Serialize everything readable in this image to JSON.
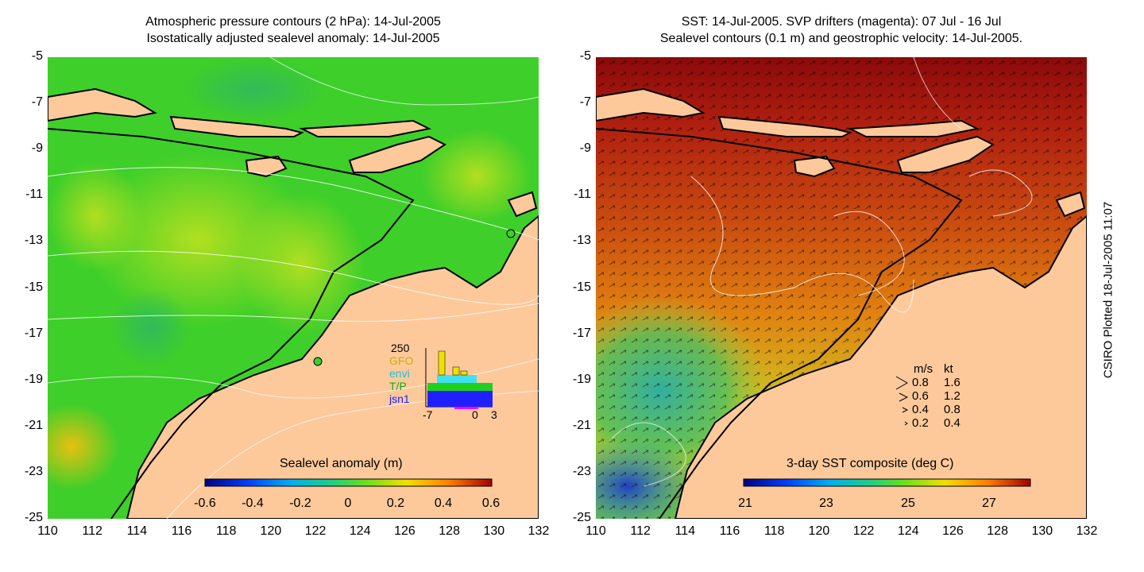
{
  "left_panel": {
    "title_line1": "Atmospheric pressure contours (2 hPa): 14-Jul-2005",
    "title_line2": "Isostatically adjusted sealevel anomaly: 14-Jul-2005",
    "colorbar_label": "Sealevel anomaly (m)",
    "colorbar_ticks": [
      "-0.6",
      "-0.4",
      "-0.2",
      "0",
      "0.2",
      "0.4",
      "0.6"
    ],
    "inset": {
      "y_top_label": "250",
      "series_names": [
        "GFO",
        "envi",
        "T/P",
        "jsn1"
      ],
      "series_colors": [
        "#f0e000",
        "#40e0f0",
        "#20d020",
        "#2020ff"
      ],
      "x_labels": [
        "-7",
        "0",
        "3"
      ]
    }
  },
  "right_panel": {
    "title_line1": "SST: 14-Jul-2005. SVP drifters (magenta): 07 Jul - 16 Jul",
    "title_line2": "Sealevel contours (0.1 m) and geostrophic velocity: 14-Jul-2005.",
    "colorbar_label": "3-day SST composite (deg C)",
    "colorbar_ticks": [
      "21",
      "23",
      "25",
      "27"
    ],
    "velocity_legend": {
      "header_ms": "m/s",
      "header_kt": "kt",
      "rows": [
        {
          "ms": "0.8",
          "kt": "1.6"
        },
        {
          "ms": "0.6",
          "kt": "1.2"
        },
        {
          "ms": "0.4",
          "kt": "0.8"
        },
        {
          "ms": "0.2",
          "kt": "0.4"
        }
      ]
    }
  },
  "y_ticks": [
    "-5",
    "-7",
    "-9",
    "-11",
    "-13",
    "-15",
    "-17",
    "-19",
    "-21",
    "-23",
    "-25"
  ],
  "x_ticks": [
    "110",
    "112",
    "114",
    "116",
    "118",
    "120",
    "122",
    "124",
    "126",
    "128",
    "130",
    "132"
  ],
  "credit": "CSIRO Plotted 18-Jul-2005 11:07",
  "colors": {
    "land": "#fdc99b",
    "sla_ocean": "#3ecf2a",
    "sst_warm": "#c04010",
    "sst_hot": "#8a0a0a",
    "coastline": "#000000",
    "contour": "#ffffff"
  }
}
